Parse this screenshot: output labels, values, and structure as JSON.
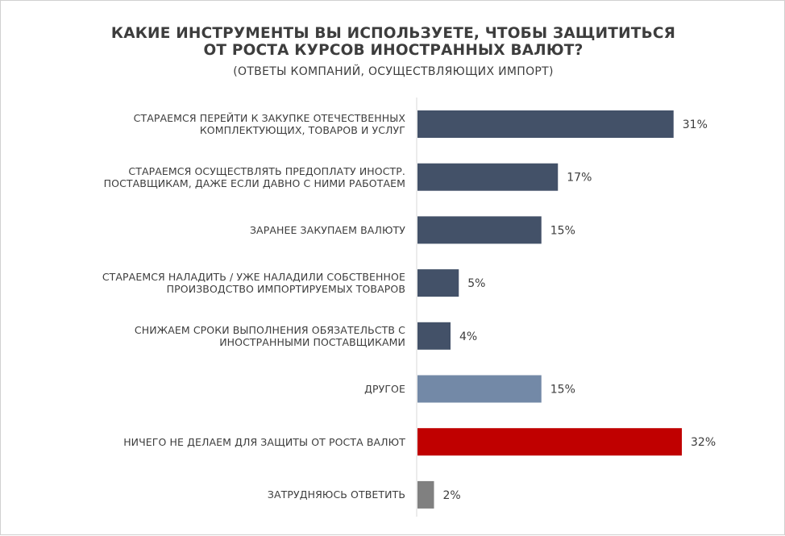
{
  "chart_data": {
    "type": "bar",
    "orientation": "horizontal",
    "title": "КАКИЕ ИНСТРУМЕНТЫ ВЫ ИСПОЛЬЗУЕТЕ, ЧТОБЫ ЗАЩИТИТЬСЯ ОТ РОСТА КУРСОВ ИНОСТРАННЫХ ВАЛЮТ?",
    "title_lines": [
      "КАКИЕ ИНСТРУМЕНТЫ ВЫ ИСПОЛЬЗУЕТЕ, ЧТОБЫ ЗАЩИТИТЬСЯ",
      "ОТ РОСТА КУРСОВ ИНОСТРАННЫХ ВАЛЮТ?"
    ],
    "subtitle": "(ОТВЕТЫ КОМПАНИЙ, ОСУЩЕСТВЛЯЮЩИХ ИМПОРТ)",
    "categories": [
      [
        "СТАРАЕМСЯ ПЕРЕЙТИ К ЗАКУПКЕ ОТЕЧЕСТВЕННЫХ",
        "КОМПЛЕКТУЮЩИХ, ТОВАРОВ И УСЛУГ"
      ],
      [
        "СТАРАЕМСЯ ОСУЩЕСТВЛЯТЬ ПРЕДОПЛАТУ ИНОСТР.",
        "ПОСТАВЩИКАМ, ДАЖЕ ЕСЛИ ДАВНО С НИМИ РАБОТАЕМ"
      ],
      [
        "ЗАРАНЕЕ ЗАКУПАЕМ ВАЛЮТУ"
      ],
      [
        "СТАРАЕМСЯ НАЛАДИТЬ / УЖЕ НАЛАДИЛИ СОБСТВЕННОЕ",
        "ПРОИЗВОДСТВО ИМПОРТИРУЕМЫХ ТОВАРОВ"
      ],
      [
        "СНИЖАЕМ СРОКИ ВЫПОЛНЕНИЯ ОБЯЗАТЕЛЬСТВ С",
        "ИНОСТРАННЫМИ ПОСТАВЩИКАМИ"
      ],
      [
        "ДРУГОЕ"
      ],
      [
        "НИЧЕГО НЕ ДЕЛАЕМ ДЛЯ ЗАЩИТЫ ОТ РОСТА ВАЛЮТ"
      ],
      [
        "ЗАТРУДНЯЮСЬ ОТВЕТИТЬ"
      ]
    ],
    "values": [
      31,
      17,
      15,
      5,
      4,
      15,
      32,
      2
    ],
    "value_labels": [
      "31%",
      "17%",
      "15%",
      "5%",
      "4%",
      "15%",
      "32%",
      "2%"
    ],
    "bar_colors": [
      "#435168",
      "#435168",
      "#435168",
      "#435168",
      "#435168",
      "#7389a7",
      "#c00000",
      "#808080"
    ],
    "value_unit": "%",
    "xlim": [
      0,
      32
    ],
    "grid": false,
    "legend": "none"
  },
  "colors": {
    "text": "#3d3d3d",
    "axis": "#d9d9d9",
    "background": "#ffffff"
  }
}
